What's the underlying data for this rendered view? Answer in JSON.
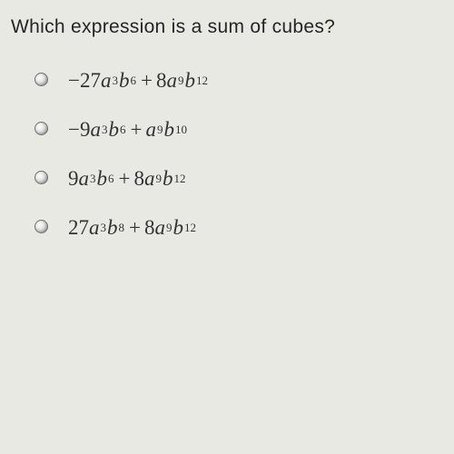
{
  "question": {
    "text": "Which expression is a sum of cubes?",
    "fontsize": 21,
    "color": "#252525"
  },
  "options": [
    {
      "selected": false,
      "terms": [
        {
          "coef": "−27",
          "a_exp": "3",
          "b_exp": "6"
        },
        {
          "op": "+",
          "coef": "8",
          "a_exp": "9",
          "b_exp": "12"
        }
      ]
    },
    {
      "selected": false,
      "terms": [
        {
          "coef": "−9",
          "a_exp": "3",
          "b_exp": "6"
        },
        {
          "op": "+",
          "coef": "",
          "a_exp": "9",
          "b_exp": "10"
        }
      ]
    },
    {
      "selected": false,
      "terms": [
        {
          "coef": "9",
          "a_exp": "3",
          "b_exp": "6"
        },
        {
          "op": "+",
          "coef": "8",
          "a_exp": "9",
          "b_exp": "12"
        }
      ]
    },
    {
      "selected": false,
      "terms": [
        {
          "coef": "27",
          "a_exp": "3",
          "b_exp": "8"
        },
        {
          "op": "+",
          "coef": "8",
          "a_exp": "9",
          "b_exp": "12"
        }
      ]
    }
  ],
  "styling": {
    "background_color": "#e8e9e3",
    "text_color": "#333333",
    "math_fontsize": 23,
    "exp_fontsize": 13,
    "radio_border": "#707070",
    "radio_size": 15
  }
}
